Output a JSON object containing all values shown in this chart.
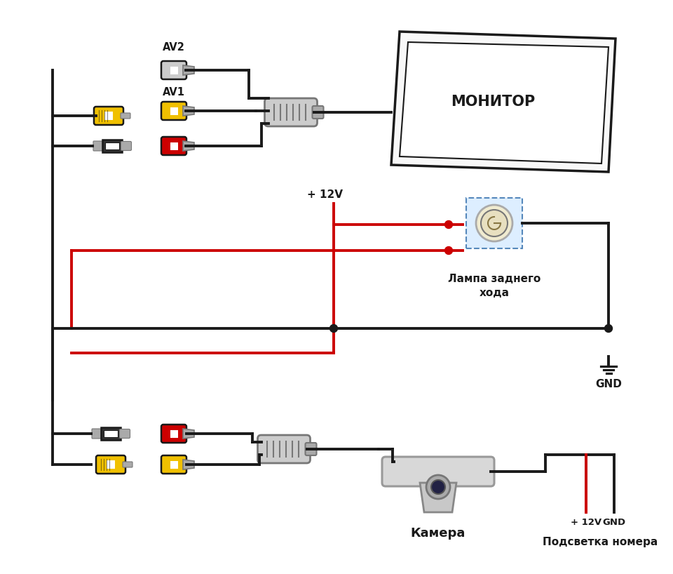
{
  "bg": "#ffffff",
  "BK": "#1a1a1a",
  "RD": "#cc0000",
  "YL": "#f0c000",
  "GR": "#cccccc",
  "GRM": "#aaaaaa",
  "GRD": "#777777",
  "BLU": "#ddeeff",
  "BLU_B": "#5588bb",
  "monitor_text": "МОНИТОР",
  "av1": "AV1",
  "av2": "AV2",
  "lamp1": "Лампа заднего",
  "lamp2": "хода",
  "gnd": "GND",
  "v12": "+ 12V",
  "cam": "Камера",
  "bl": "Подсветка номера",
  "lw": 2.8
}
